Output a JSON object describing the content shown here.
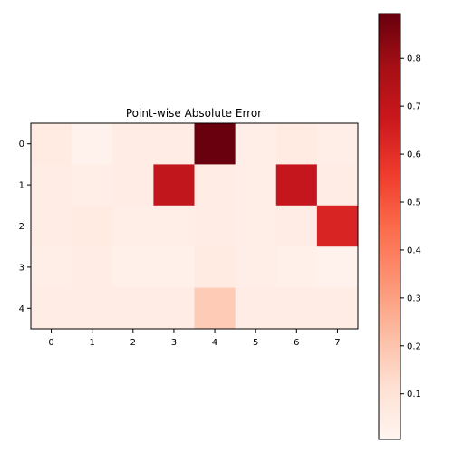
{
  "chart_data": {
    "type": "heatmap",
    "title": "Point-wise Absolute Error",
    "x_ticks": [
      "0",
      "1",
      "2",
      "3",
      "4",
      "5",
      "6",
      "7"
    ],
    "y_ticks": [
      "0",
      "1",
      "2",
      "3",
      "4"
    ],
    "values": [
      [
        0.06,
        0.02,
        0.05,
        0.05,
        0.89,
        0.04,
        0.06,
        0.04
      ],
      [
        0.05,
        0.04,
        0.05,
        0.7,
        0.05,
        0.04,
        0.69,
        0.05
      ],
      [
        0.05,
        0.06,
        0.04,
        0.04,
        0.05,
        0.04,
        0.05,
        0.63
      ],
      [
        0.04,
        0.05,
        0.03,
        0.03,
        0.06,
        0.04,
        0.03,
        0.02
      ],
      [
        0.05,
        0.05,
        0.05,
        0.05,
        0.18,
        0.05,
        0.05,
        0.05
      ]
    ],
    "colormap": "Reds",
    "colorbar": {
      "range": [
        0.005,
        0.893
      ],
      "ticks": [
        0.1,
        0.2,
        0.3,
        0.4,
        0.5,
        0.6,
        0.7,
        0.8
      ],
      "tick_labels": [
        "0.1",
        "0.2",
        "0.3",
        "0.4",
        "0.5",
        "0.6",
        "0.7",
        "0.8"
      ]
    },
    "grid": false
  }
}
